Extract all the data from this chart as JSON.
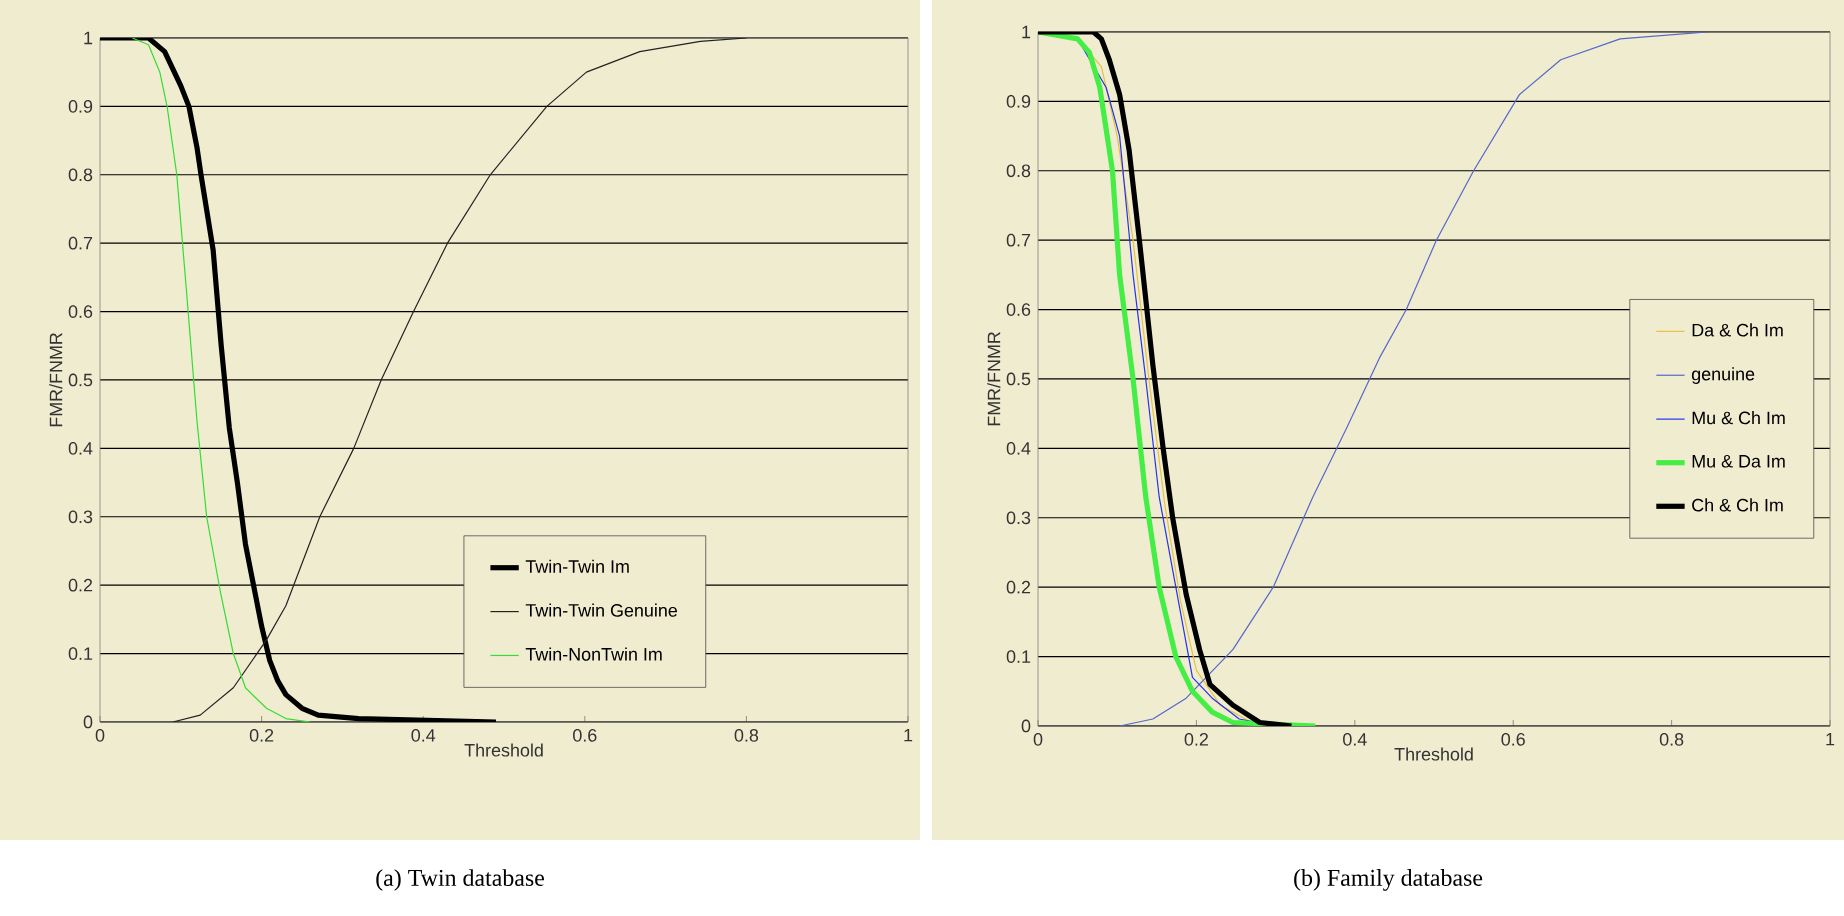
{
  "chart_data": [
    {
      "type": "line",
      "xlabel": "Threshold",
      "ylabel": "FMR/FNMR",
      "annotations": [
        "(a) Twin database"
      ],
      "xlim": [
        0,
        1
      ],
      "ylim": [
        0,
        1
      ],
      "xticks": [
        0,
        0.2,
        0.4,
        0.6,
        0.8,
        1
      ],
      "yticks": [
        0,
        0.1,
        0.2,
        0.3,
        0.4,
        0.5,
        0.6,
        0.7,
        0.8,
        0.9,
        1
      ],
      "grid": "y",
      "legend": "bottom",
      "line_style": "solid",
      "series": [
        {
          "name": "Twin-Twin Im",
          "color": "#000000",
          "x": [
            0,
            0.06,
            0.08,
            0.1,
            0.11,
            0.12,
            0.125,
            0.14,
            0.15,
            0.16,
            0.17,
            0.18,
            0.19,
            0.2,
            0.21,
            0.22,
            0.23,
            0.25,
            0.27,
            0.32,
            0.49
          ],
          "values": [
            1,
            1,
            0.98,
            0.93,
            0.9,
            0.84,
            0.8,
            0.69,
            0.55,
            0.43,
            0.35,
            0.26,
            0.2,
            0.14,
            0.09,
            0.06,
            0.04,
            0.02,
            0.01,
            0.005,
            0
          ]
        },
        {
          "name": "Twin-Twin Genuine",
          "color": "#222222",
          "x": [
            0.09,
            0.124,
            0.165,
            0.206,
            0.23,
            0.272,
            0.314,
            0.348,
            0.388,
            0.43,
            0.483,
            0.553,
            0.602,
            0.668,
            0.743,
            0.8
          ],
          "values": [
            0,
            0.01,
            0.05,
            0.12,
            0.17,
            0.3,
            0.4,
            0.5,
            0.6,
            0.7,
            0.8,
            0.9,
            0.95,
            0.98,
            0.995,
            1
          ]
        },
        {
          "name": "Twin-NonTwin Im",
          "color": "#33dd33",
          "x": [
            0.04,
            0.06,
            0.074,
            0.083,
            0.095,
            0.107,
            0.12,
            0.132,
            0.149,
            0.165,
            0.18,
            0.206,
            0.23,
            0.26
          ],
          "values": [
            1,
            0.99,
            0.95,
            0.9,
            0.8,
            0.63,
            0.44,
            0.3,
            0.19,
            0.1,
            0.05,
            0.02,
            0.005,
            0
          ]
        }
      ]
    },
    {
      "type": "line",
      "xlabel": "Threshold",
      "ylabel": "FMR/FNMR",
      "annotations": [
        "(b) Family database"
      ],
      "xlim": [
        0,
        1
      ],
      "ylim": [
        0,
        1
      ],
      "xticks": [
        0,
        0.2,
        0.4,
        0.6,
        0.8,
        1
      ],
      "yticks": [
        0,
        0.1,
        0.2,
        0.3,
        0.4,
        0.5,
        0.6,
        0.7,
        0.8,
        0.9,
        1
      ],
      "grid": "y",
      "legend": "right",
      "line_style": "solid",
      "series": [
        {
          "name": "Da & Ch Im",
          "color": "#e8c040",
          "x": [
            0,
            0.05,
            0.08,
            0.1,
            0.12,
            0.14,
            0.16,
            0.18,
            0.2,
            0.23,
            0.27,
            0.3
          ],
          "values": [
            1,
            0.99,
            0.95,
            0.85,
            0.7,
            0.5,
            0.32,
            0.18,
            0.08,
            0.03,
            0.005,
            0
          ]
        },
        {
          "name": "genuine",
          "color": "#5566cc",
          "x": [
            0.103,
            0.145,
            0.187,
            0.246,
            0.297,
            0.347,
            0.39,
            0.431,
            0.465,
            0.503,
            0.55,
            0.608,
            0.66,
            0.735,
            0.845
          ],
          "values": [
            0,
            0.01,
            0.04,
            0.11,
            0.2,
            0.33,
            0.43,
            0.53,
            0.6,
            0.7,
            0.8,
            0.91,
            0.96,
            0.99,
            1
          ]
        },
        {
          "name": "Mu & Ch Im",
          "color": "#2233ee",
          "x": [
            0,
            0.05,
            0.086,
            0.103,
            0.12,
            0.136,
            0.153,
            0.174,
            0.195,
            0.22,
            0.254,
            0.3
          ],
          "values": [
            1,
            0.99,
            0.92,
            0.85,
            0.65,
            0.5,
            0.33,
            0.2,
            0.07,
            0.04,
            0.01,
            0
          ]
        },
        {
          "name": "Mu & Da Im",
          "color": "#44ee44",
          "x": [
            0,
            0.05,
            0.065,
            0.078,
            0.094,
            0.103,
            0.12,
            0.136,
            0.153,
            0.174,
            0.195,
            0.22,
            0.246,
            0.35
          ],
          "values": [
            1,
            0.99,
            0.97,
            0.92,
            0.8,
            0.65,
            0.5,
            0.33,
            0.2,
            0.1,
            0.05,
            0.02,
            0.005,
            0
          ]
        },
        {
          "name": "Ch & Ch Im",
          "color": "#000000",
          "x": [
            0,
            0.07,
            0.08,
            0.09,
            0.103,
            0.115,
            0.128,
            0.145,
            0.158,
            0.17,
            0.187,
            0.204,
            0.217,
            0.246,
            0.28,
            0.32
          ],
          "values": [
            1,
            1,
            0.99,
            0.96,
            0.91,
            0.83,
            0.7,
            0.52,
            0.4,
            0.3,
            0.19,
            0.11,
            0.06,
            0.03,
            0.005,
            0
          ]
        }
      ]
    }
  ]
}
